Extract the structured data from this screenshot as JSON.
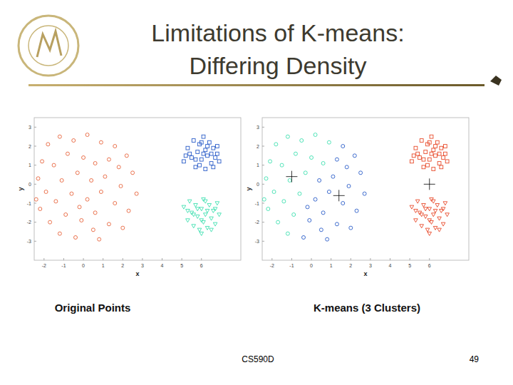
{
  "slide": {
    "title_lines": [
      "Limitations of K-means:",
      "Differing Density"
    ],
    "footer": "CS590D",
    "page": "49"
  },
  "chart_data": [
    {
      "type": "scatter",
      "title": "Original Points",
      "x_label": "x",
      "y_label": "y",
      "xlim": [
        -2.5,
        8
      ],
      "ylim": [
        -4,
        3.5
      ],
      "xticks": [
        -2,
        -1,
        0,
        1,
        2,
        3,
        4,
        5,
        6
      ],
      "yticks": [
        -3,
        -2,
        -1,
        0,
        1,
        2,
        3
      ],
      "series": [
        {
          "color": "#e8643c",
          "marker": "circle",
          "x": [
            -2.1,
            -1.8,
            -1.2,
            -0.5,
            0.2,
            0.9,
            1.6,
            2.2,
            -2.3,
            -1.5,
            -0.8,
            0,
            0.6,
            1.3,
            2.5,
            -1.9,
            -1.1,
            -0.3,
            0.4,
            1.1,
            1.9,
            2.7,
            -2.2,
            -1.4,
            -0.6,
            0.2,
            0.9,
            1.6,
            2.3,
            -1.7,
            -0.9,
            -0.1,
            0.6,
            1.3,
            2.0,
            -1.2,
            -0.4,
            0.5,
            -2.4,
            1.8,
            -0.2,
            0.8
          ],
          "values": [
            1.2,
            2.1,
            2.5,
            2.3,
            2.6,
            2.2,
            2.0,
            1.5,
            0.3,
            1.0,
            1.6,
            1.4,
            1.1,
            1.3,
            0.6,
            -0.4,
            0.2,
            0.6,
            0.2,
            0.4,
            -0.1,
            -0.5,
            -1.3,
            -0.9,
            -0.5,
            -0.8,
            -0.4,
            -1.0,
            -1.4,
            -2.0,
            -1.6,
            -1.9,
            -1.5,
            -2.1,
            -2.3,
            -2.6,
            -2.8,
            -2.4,
            -0.8,
            0.9,
            -1.2,
            -2.9
          ]
        },
        {
          "color": "#2a5cc8",
          "marker": "square",
          "x": [
            5.1,
            5.3,
            5.5,
            5.6,
            5.7,
            5.8,
            5.9,
            6.0,
            6.1,
            6.2,
            6.2,
            6.3,
            6.4,
            6.5,
            6.6,
            6.7,
            6.8,
            6.9,
            5.4,
            5.9,
            6.1,
            6.5,
            5.7,
            6.3,
            6.0,
            6.6,
            5.2,
            6.8
          ],
          "values": [
            1.2,
            1.9,
            1.4,
            2.3,
            0.9,
            1.7,
            2.1,
            1.3,
            2.5,
            0.8,
            1.8,
            1.5,
            2.2,
            1.1,
            1.9,
            1.4,
            2.0,
            1.2,
            1.6,
            1.0,
            1.6,
            1.6,
            1.3,
            2.0,
            2.2,
            0.9,
            1.5,
            1.6
          ]
        },
        {
          "color": "#3ee0b0",
          "marker": "triangle",
          "x": [
            5.1,
            5.3,
            5.4,
            5.5,
            5.6,
            5.7,
            5.8,
            5.9,
            6.0,
            6.1,
            6.1,
            6.2,
            6.3,
            6.4,
            6.5,
            6.6,
            6.7,
            6.8,
            6.9,
            5.6,
            6.0,
            6.3,
            5.8,
            6.5,
            6.2,
            5.3,
            6.7,
            6.0
          ],
          "values": [
            -1.2,
            -1.9,
            -0.9,
            -1.5,
            -2.2,
            -1.1,
            -1.7,
            -2.4,
            -1.3,
            -0.8,
            -2.0,
            -1.6,
            -2.3,
            -1.1,
            -1.8,
            -1.4,
            -2.1,
            -1.0,
            -1.6,
            -1.6,
            -1.9,
            -1.4,
            -1.3,
            -2.4,
            -0.9,
            -1.4,
            -1.3,
            -2.6
          ]
        }
      ]
    },
    {
      "type": "scatter",
      "title": "K-means (3 Clusters)",
      "x_label": "x",
      "y_label": "y",
      "xlim": [
        -2.5,
        8
      ],
      "ylim": [
        -4,
        3.5
      ],
      "xticks": [
        -2,
        -1,
        0,
        1,
        2,
        3,
        4,
        5,
        6
      ],
      "yticks": [
        -3,
        -2,
        -1,
        0,
        1,
        2,
        3
      ],
      "series": [
        {
          "color": "#3ee0b0",
          "marker": "circle",
          "x": [
            -2.1,
            -1.8,
            -1.2,
            -0.5,
            0.2,
            0.9,
            -2.3,
            -1.5,
            -0.8,
            0,
            0.6,
            -1.9,
            -1.1,
            -0.3,
            -2.2,
            -1.4,
            -0.6,
            -1.7,
            -0.9,
            -1.2,
            -2.4
          ],
          "values": [
            1.2,
            2.1,
            2.5,
            2.3,
            2.6,
            2.2,
            0.3,
            1.0,
            1.6,
            1.4,
            1.1,
            -0.4,
            0.2,
            0.6,
            -1.3,
            -0.9,
            -0.5,
            -2.0,
            -1.6,
            -2.6,
            -0.8
          ]
        },
        {
          "color": "#2a5cc8",
          "marker": "circle",
          "x": [
            1.6,
            2.2,
            1.3,
            2.5,
            0.4,
            1.1,
            1.9,
            2.7,
            0.2,
            0.9,
            1.6,
            2.3,
            -0.1,
            0.6,
            1.3,
            2.0,
            -0.4,
            0.5,
            1.8,
            -0.2,
            0.8
          ],
          "values": [
            2.0,
            1.5,
            1.3,
            0.6,
            0.2,
            0.4,
            -0.1,
            -0.5,
            -0.8,
            -0.4,
            -1.0,
            -1.4,
            -1.9,
            -1.5,
            -2.1,
            -2.3,
            -2.8,
            -2.4,
            0.9,
            -1.2,
            -2.9
          ]
        },
        {
          "color": "#e84a2a",
          "marker": "square",
          "x": [
            5.1,
            5.3,
            5.5,
            5.6,
            5.7,
            5.8,
            5.9,
            6.0,
            6.1,
            6.2,
            6.2,
            6.3,
            6.4,
            6.5,
            6.6,
            6.7,
            6.8,
            6.9,
            5.4,
            5.9,
            6.1,
            6.5,
            5.7,
            6.3,
            6.0,
            6.6,
            5.2,
            6.8
          ],
          "values": [
            1.2,
            1.9,
            1.4,
            2.3,
            0.9,
            1.7,
            2.1,
            1.3,
            2.5,
            0.8,
            1.8,
            1.5,
            2.2,
            1.1,
            1.9,
            1.4,
            2.0,
            1.2,
            1.6,
            1.0,
            1.6,
            1.6,
            1.3,
            2.0,
            2.2,
            0.9,
            1.5,
            1.6
          ]
        },
        {
          "color": "#e84a2a",
          "marker": "triangle",
          "x": [
            5.1,
            5.3,
            5.4,
            5.5,
            5.6,
            5.7,
            5.8,
            5.9,
            6.0,
            6.1,
            6.1,
            6.2,
            6.3,
            6.4,
            6.5,
            6.6,
            6.7,
            6.8,
            6.9,
            5.6,
            6.0,
            6.3,
            5.8,
            6.5,
            6.2,
            5.3,
            6.7,
            6.0
          ],
          "values": [
            -1.2,
            -1.9,
            -0.9,
            -1.5,
            -2.2,
            -1.1,
            -1.7,
            -2.4,
            -1.3,
            -0.8,
            -2.0,
            -1.6,
            -2.3,
            -1.1,
            -1.8,
            -1.4,
            -2.1,
            -1.0,
            -1.6,
            -1.6,
            -1.9,
            -1.4,
            -1.3,
            -2.4,
            -0.9,
            -1.4,
            -1.3,
            -2.6
          ]
        },
        {
          "color": "#000000",
          "marker": "plus",
          "x": [
            -1,
            1.4,
            6
          ],
          "values": [
            0.4,
            -0.6,
            0
          ]
        }
      ]
    }
  ]
}
